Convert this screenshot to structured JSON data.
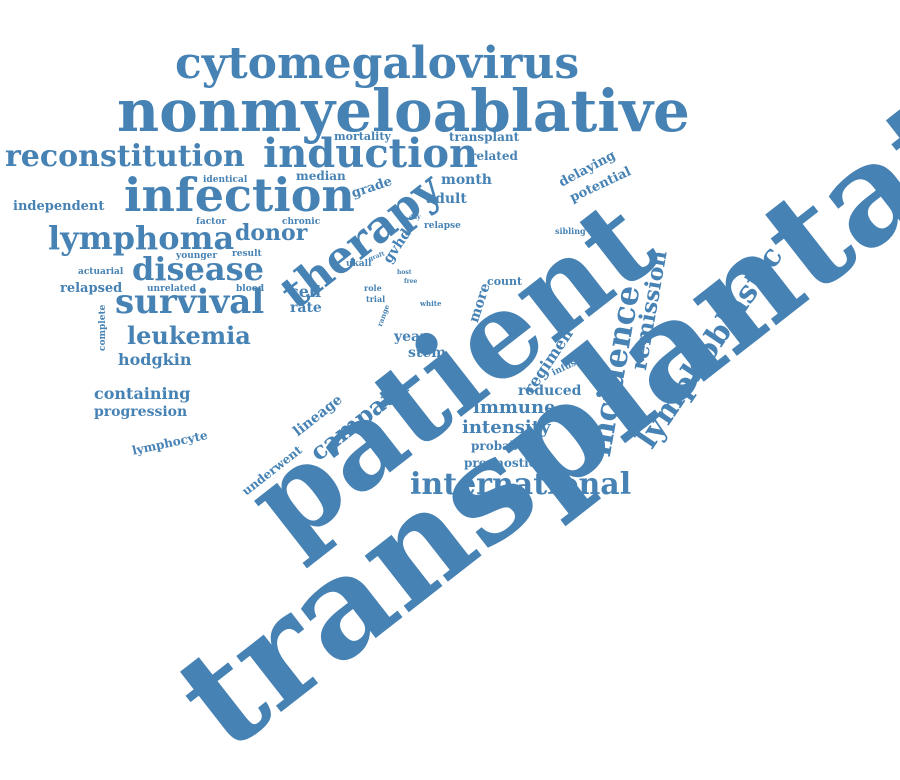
{
  "color": "#4682b4",
  "words": [
    "transplantation",
    "patient",
    "nonmyeloablative",
    "cytomegalovirus",
    "infection",
    "induction",
    "reconstitution",
    "therapy",
    "survival",
    "lymphoma",
    "disease",
    "international",
    "leukemia",
    "lymphoblastic",
    "incidence",
    "remission",
    "campath",
    "donor",
    "hodgkin",
    "containing",
    "intensity",
    "immune",
    "progression",
    "regimen",
    "lineage",
    "lymphocyte",
    "underwent",
    "stem",
    "year",
    "cell",
    "rate",
    "more",
    "reduced",
    "probability",
    "prognostic",
    "month",
    "adult",
    "gvhd",
    "delaying",
    "potential",
    "related",
    "transplant",
    "mortality",
    "median",
    "grade",
    "identical",
    "independent",
    "factor",
    "chronic",
    "younger",
    "result",
    "actuarial",
    "unrelated",
    "relapsed",
    "blood",
    "complete",
    "relapse",
    "sibling",
    "count",
    "ukall",
    "role",
    "trial",
    "graft",
    "range",
    "host",
    "free",
    "white",
    "day",
    "infusion"
  ]
}
